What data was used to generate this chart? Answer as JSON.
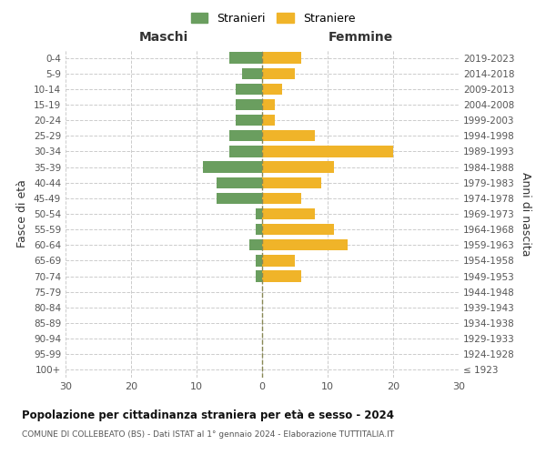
{
  "age_groups": [
    "100+",
    "95-99",
    "90-94",
    "85-89",
    "80-84",
    "75-79",
    "70-74",
    "65-69",
    "60-64",
    "55-59",
    "50-54",
    "45-49",
    "40-44",
    "35-39",
    "30-34",
    "25-29",
    "20-24",
    "15-19",
    "10-14",
    "5-9",
    "0-4"
  ],
  "birth_years": [
    "≤ 1923",
    "1924-1928",
    "1929-1933",
    "1934-1938",
    "1939-1943",
    "1944-1948",
    "1949-1953",
    "1954-1958",
    "1959-1963",
    "1964-1968",
    "1969-1973",
    "1974-1978",
    "1979-1983",
    "1984-1988",
    "1989-1993",
    "1994-1998",
    "1999-2003",
    "2004-2008",
    "2009-2013",
    "2014-2018",
    "2019-2023"
  ],
  "maschi": [
    0,
    0,
    0,
    0,
    0,
    0,
    1,
    1,
    2,
    1,
    1,
    7,
    7,
    9,
    5,
    5,
    4,
    4,
    4,
    3,
    5
  ],
  "femmine": [
    0,
    0,
    0,
    0,
    0,
    0,
    6,
    5,
    13,
    11,
    8,
    6,
    9,
    11,
    20,
    8,
    2,
    2,
    3,
    5,
    6
  ],
  "color_maschi": "#6a9e5f",
  "color_femmine": "#f0b429",
  "background_color": "#ffffff",
  "grid_color": "#cccccc",
  "title": "Popolazione per cittadinanza straniera per età e sesso - 2024",
  "subtitle": "COMUNE DI COLLEBEATO (BS) - Dati ISTAT al 1° gennaio 2024 - Elaborazione TUTTITALIA.IT",
  "ylabel_left": "Fasce di età",
  "ylabel_right": "Anni di nascita",
  "xlabel_left": "Maschi",
  "xlabel_right": "Femmine",
  "legend_stranieri": "Stranieri",
  "legend_straniere": "Straniere",
  "xlim": 30
}
